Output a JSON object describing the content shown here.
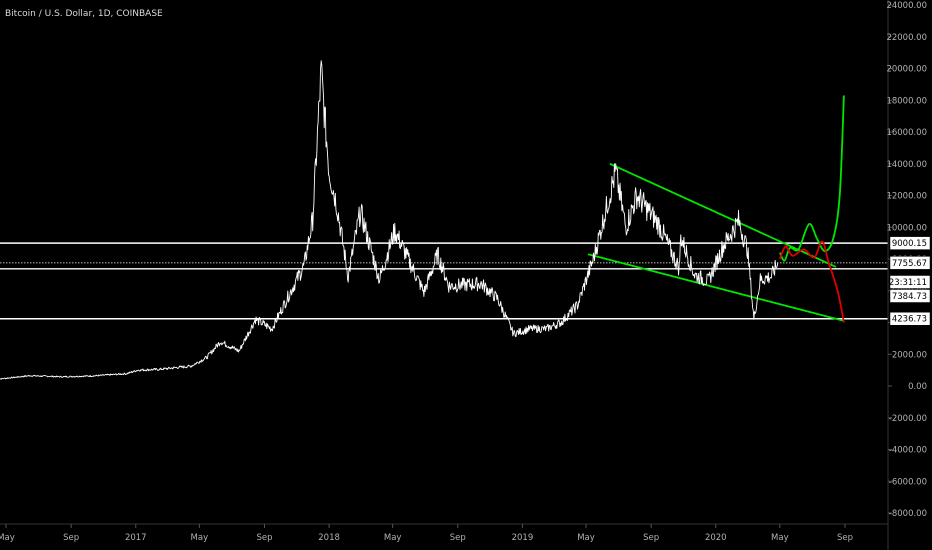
{
  "header": {
    "symbol_title": "Bitcoin / U.S. Dollar, 1D, COINBASE"
  },
  "chart_data": {
    "type": "line",
    "title": "Bitcoin / U.S. Dollar, 1D, COINBASE",
    "ylim": [
      -8800,
      24000
    ],
    "y_ticks": [
      "24000.00",
      "22000.00",
      "20000.00",
      "18000.00",
      "16000.00",
      "14000.00",
      "12000.00",
      "10000.00",
      "8000.00",
      "6000.00",
      "4000.00",
      "2000.00",
      "0.00",
      "-2000.00",
      "-4000.00",
      "-6000.00",
      "-8000.00"
    ],
    "y_tick_values": [
      24000,
      22000,
      20000,
      18000,
      16000,
      14000,
      12000,
      10000,
      8000,
      6000,
      4000,
      2000,
      0,
      -2000,
      -4000,
      -6000,
      -8000
    ],
    "x_ticks": [
      "May",
      "Sep",
      "2017",
      "May",
      "Sep",
      "2018",
      "May",
      "Sep",
      "2019",
      "May",
      "Sep",
      "2020",
      "May",
      "Sep"
    ],
    "x_tick_dates": [
      "2016-05-01",
      "2016-09-01",
      "2017-01-01",
      "2017-05-01",
      "2017-09-01",
      "2018-01-01",
      "2018-05-01",
      "2018-09-01",
      "2019-01-01",
      "2019-05-01",
      "2019-09-01",
      "2020-01-01",
      "2020-05-01",
      "2020-09-01"
    ],
    "price_series": {
      "name": "BTC/USD",
      "color": "#ffffff",
      "points": [
        [
          "2016-04-15",
          430
        ],
        [
          "2016-06-15",
          650
        ],
        [
          "2016-08-15",
          580
        ],
        [
          "2016-10-15",
          640
        ],
        [
          "2016-12-15",
          780
        ],
        [
          "2017-01-05",
          1000
        ],
        [
          "2017-02-15",
          1050
        ],
        [
          "2017-03-15",
          1150
        ],
        [
          "2017-04-15",
          1250
        ],
        [
          "2017-05-15",
          1800
        ],
        [
          "2017-06-10",
          2800
        ],
        [
          "2017-07-15",
          2200
        ],
        [
          "2017-08-15",
          4200
        ],
        [
          "2017-09-15",
          3600
        ],
        [
          "2017-10-15",
          5600
        ],
        [
          "2017-11-15",
          7600
        ],
        [
          "2017-12-01",
          10500
        ],
        [
          "2017-12-17",
          19800
        ],
        [
          "2018-01-01",
          13500
        ],
        [
          "2018-01-15",
          11500
        ],
        [
          "2018-02-06",
          6900
        ],
        [
          "2018-03-01",
          11000
        ],
        [
          "2018-04-06",
          6700
        ],
        [
          "2018-05-05",
          9800
        ],
        [
          "2018-06-29",
          5900
        ],
        [
          "2018-07-25",
          8300
        ],
        [
          "2018-08-15",
          6300
        ],
        [
          "2018-10-15",
          6450
        ],
        [
          "2018-11-15",
          5500
        ],
        [
          "2018-12-15",
          3300
        ],
        [
          "2019-01-15",
          3600
        ],
        [
          "2019-02-15",
          3600
        ],
        [
          "2019-03-15",
          4000
        ],
        [
          "2019-04-15",
          5100
        ],
        [
          "2019-05-15",
          8000
        ],
        [
          "2019-06-26",
          13500
        ],
        [
          "2019-07-15",
          10000
        ],
        [
          "2019-08-05",
          12000
        ],
        [
          "2019-09-15",
          10200
        ],
        [
          "2019-10-24",
          7400
        ],
        [
          "2019-10-27",
          9400
        ],
        [
          "2019-11-22",
          7000
        ],
        [
          "2019-12-18",
          6600
        ],
        [
          "2020-01-15",
          8800
        ],
        [
          "2020-02-13",
          10400
        ],
        [
          "2020-03-01",
          8600
        ],
        [
          "2020-03-13",
          4200
        ],
        [
          "2020-03-25",
          6700
        ],
        [
          "2020-04-15",
          6900
        ],
        [
          "2020-04-27",
          7750
        ]
      ]
    },
    "horizontal_levels": [
      {
        "value": 9000.15,
        "label": "9000.15",
        "style": "solid"
      },
      {
        "value": 7755.67,
        "label": "7755.67",
        "style": "dotted"
      },
      {
        "value": 7384.73,
        "label": "7384.73",
        "style": "solid"
      },
      {
        "value": 4236.73,
        "label": "4236.73",
        "style": "solid"
      }
    ],
    "countdown_label": "23:31:11",
    "trendlines": [
      {
        "name": "upper wedge",
        "color": "#00e600",
        "from": [
          "2019-06-15",
          14000
        ],
        "to": [
          "2020-08-15",
          7500
        ]
      },
      {
        "name": "lower wedge",
        "color": "#00e600",
        "from": [
          "2019-05-05",
          8300
        ],
        "to": [
          "2020-08-30",
          4100
        ]
      }
    ],
    "projections": [
      {
        "name": "bullish path",
        "color": "#00e600",
        "points": [
          [
            "2020-05-01",
            8400
          ],
          [
            "2020-05-10",
            7900
          ],
          [
            "2020-05-20",
            8700
          ],
          [
            "2020-06-05",
            8600
          ],
          [
            "2020-06-25",
            10200
          ],
          [
            "2020-07-10",
            9300
          ],
          [
            "2020-07-25",
            8500
          ],
          [
            "2020-08-10",
            9300
          ],
          [
            "2020-08-22",
            12000
          ],
          [
            "2020-08-30",
            18300
          ]
        ]
      },
      {
        "name": "bearish path",
        "color": "#e00000",
        "points": [
          [
            "2020-05-01",
            8000
          ],
          [
            "2020-05-12",
            8800
          ],
          [
            "2020-05-25",
            8200
          ],
          [
            "2020-06-15",
            8600
          ],
          [
            "2020-07-05",
            8100
          ],
          [
            "2020-07-20",
            9100
          ],
          [
            "2020-08-01",
            7800
          ],
          [
            "2020-08-18",
            6000
          ],
          [
            "2020-08-30",
            4000
          ]
        ]
      }
    ]
  }
}
